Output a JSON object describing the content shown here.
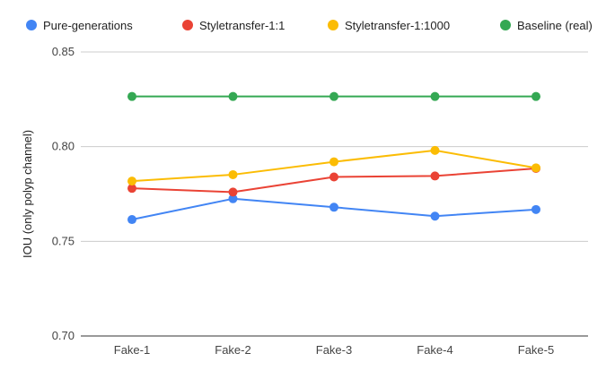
{
  "chart_data": {
    "type": "line",
    "title": "",
    "xlabel": "",
    "ylabel": "IOU (only polyp channel)",
    "categories": [
      "Fake-1",
      "Fake-2",
      "Fake-3",
      "Fake-4",
      "Fake-5"
    ],
    "ylim": [
      0.7,
      0.85
    ],
    "yticks": [
      "0.70",
      "0.75",
      "0.80",
      "0.85"
    ],
    "grid": true,
    "legend_position": "top",
    "series": [
      {
        "name": "Pure-generations",
        "color": "#4285F4",
        "values": [
          0.7615,
          0.7725,
          0.768,
          0.7633,
          0.7668
        ]
      },
      {
        "name": "Styletransfer-1:1",
        "color": "#EA4335",
        "values": [
          0.778,
          0.776,
          0.784,
          0.7845,
          0.7885
        ]
      },
      {
        "name": "Styletransfer-1:1000",
        "color": "#FBBC04",
        "values": [
          0.7818,
          0.7852,
          0.792,
          0.798,
          0.7888
        ]
      },
      {
        "name": "Baseline (real)",
        "color": "#34A853",
        "values": [
          0.8265,
          0.8265,
          0.8265,
          0.8265,
          0.8265
        ]
      }
    ]
  }
}
